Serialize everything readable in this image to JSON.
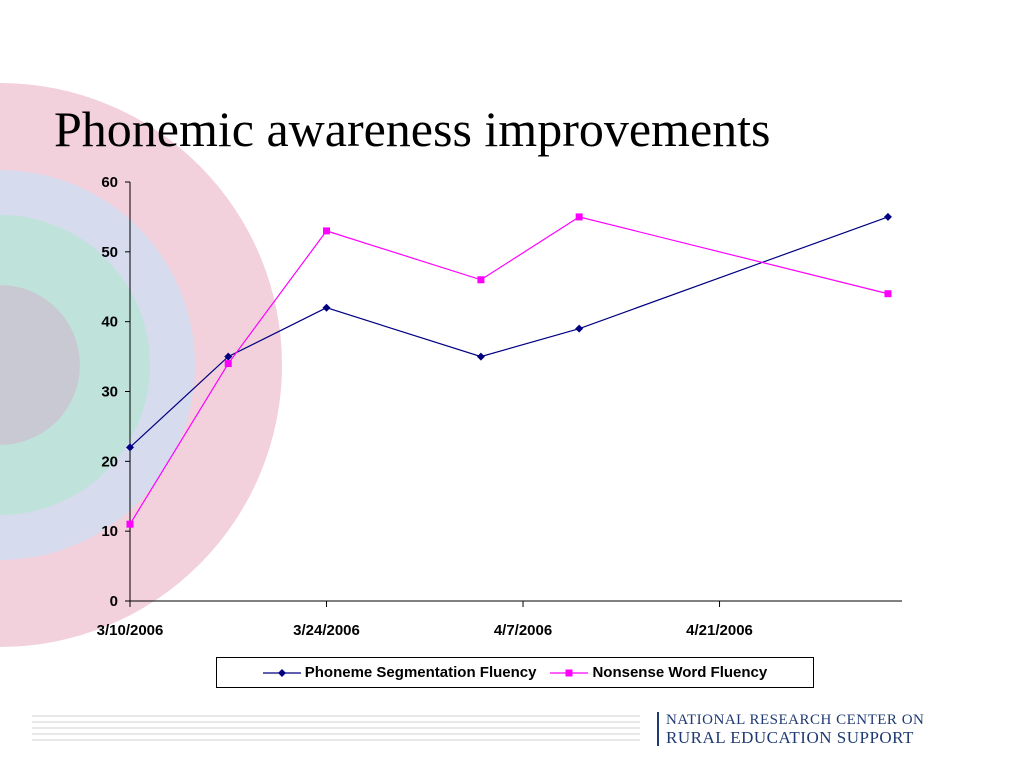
{
  "slide": {
    "title": "Phonemic awareness improvements"
  },
  "colors": {
    "ring_pink": "#f2d0dc",
    "ring_lavender": "#d6dbee",
    "ring_teal": "#bfe3da",
    "ring_gray": "#c9c9d4",
    "series_1": "#000080",
    "series_2": "#ff00ff",
    "logo": "#1f3a72"
  },
  "chart_data": {
    "type": "line",
    "title": "",
    "xlabel": "",
    "ylabel": "",
    "x_ticks": [
      "3/10/2006",
      "3/24/2006",
      "4/7/2006",
      "4/21/2006"
    ],
    "xlim": [
      "3/10/2006",
      "5/4/2006"
    ],
    "ylim": [
      0,
      60
    ],
    "y_ticks": [
      0,
      10,
      20,
      30,
      40,
      50,
      60
    ],
    "grid": false,
    "legend_position": "bottom",
    "series": [
      {
        "name": "Phoneme Segmentation Fluency",
        "marker": "diamond",
        "color": "#000080",
        "x": [
          "3/10/2006",
          "3/17/2006",
          "3/24/2006",
          "4/4/2006",
          "4/11/2006",
          "5/3/2006"
        ],
        "y": [
          22,
          35,
          42,
          35,
          39,
          55
        ]
      },
      {
        "name": "Nonsense Word Fluency",
        "marker": "square",
        "color": "#ff00ff",
        "x": [
          "3/10/2006",
          "3/17/2006",
          "3/24/2006",
          "4/4/2006",
          "4/11/2006",
          "5/3/2006"
        ],
        "y": [
          11,
          34,
          53,
          46,
          55,
          44
        ]
      }
    ]
  },
  "footer": {
    "logo_line1": "NATIONAL RESEARCH CENTER ON",
    "logo_line2": "RURAL EDUCATION SUPPORT"
  }
}
